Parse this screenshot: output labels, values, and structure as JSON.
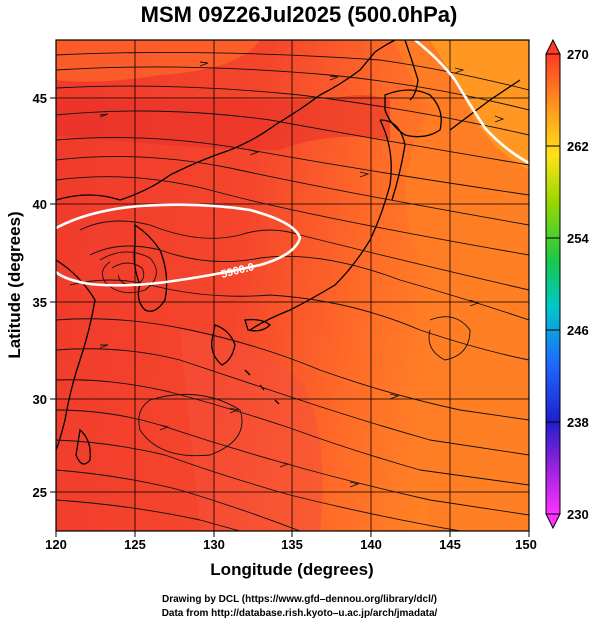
{
  "title": "MSM 09Z26Jul2025 (500.0hPa)",
  "xlabel": "Longitude (degrees)",
  "ylabel": "Latitude  (degrees)",
  "x_ticks": [
    "120",
    "125",
    "130",
    "135",
    "140",
    "145",
    "150"
  ],
  "y_ticks": [
    "25",
    "30",
    "35",
    "40",
    "45"
  ],
  "colorbar": {
    "min": 230,
    "max": 270,
    "tick_labels": [
      "230",
      "238",
      "246",
      "254",
      "262",
      "270"
    ]
  },
  "contour_label": "5900.0",
  "credits": {
    "line1": "Drawing by DCL (https://www.gfd–dennou.org/library/dcl/)",
    "line2": "Data from http://database.rish.kyoto–u.ac.jp/arch/jmadata/"
  },
  "colors": {
    "field_warm": "#f23a2a",
    "field_mid": "#ff5a2e",
    "field_cool": "#ff8a22",
    "contour": "#ffffff",
    "coast": "#000000"
  }
}
